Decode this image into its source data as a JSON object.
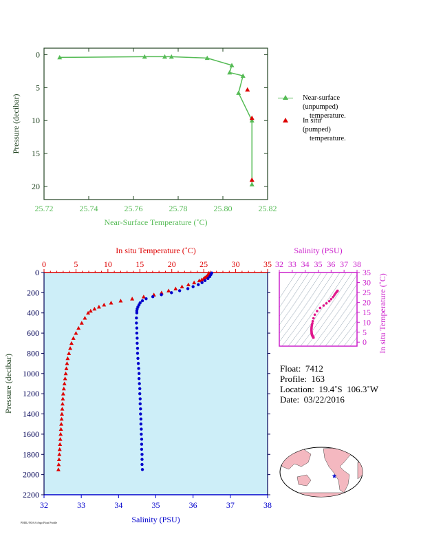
{
  "chart_data": [
    {
      "type": "line",
      "xlabel": "Near-Surface Temperature (˚C)",
      "ylabel": "Pressure (decibar)",
      "xlim": [
        25.72,
        25.82
      ],
      "ylim": [
        22,
        -1
      ],
      "xticks": [
        "25.72",
        "25.74",
        "25.76",
        "25.78",
        "25.80",
        "25.82"
      ],
      "yticks": [
        "0",
        "5",
        "10",
        "15",
        "20"
      ],
      "grid": false,
      "legend": "right",
      "series": [
        {
          "name": "Near-surface (unpumped) temperature.",
          "color": "#55bb55",
          "x": [
            25.727,
            25.765,
            25.774,
            25.777,
            25.793,
            25.804,
            25.803,
            25.809,
            25.807,
            25.813,
            25.813
          ],
          "y": [
            0.4,
            0.3,
            0.3,
            0.3,
            0.5,
            1.6,
            2.7,
            3.2,
            5.8,
            10.0,
            19.7
          ]
        },
        {
          "name": "In situ (pumped) temperature.",
          "color": "#dd0000",
          "x": [
            25.811,
            25.813,
            25.813
          ],
          "y": [
            5.3,
            9.6,
            19.0
          ]
        }
      ],
      "legend_lines": [
        [
          "Near-surface (unpumped)",
          "temperature."
        ],
        [
          "In situ (pumped)",
          "temperature."
        ]
      ]
    },
    {
      "type": "scatter",
      "x_top_label": "In situ Temperature (˚C)",
      "x_bottom_label": "Salinity (PSU)",
      "ylabel": "Pressure (decibar)",
      "temp_lim": [
        0,
        35
      ],
      "sal_lim": [
        32,
        38
      ],
      "ylim": [
        2200,
        0
      ],
      "temp_ticks": [
        "0",
        "5",
        "10",
        "15",
        "20",
        "25",
        "30",
        "35"
      ],
      "sal_ticks": [
        "32",
        "33",
        "34",
        "35",
        "36",
        "37",
        "38"
      ],
      "yticks": [
        "0",
        "200",
        "400",
        "600",
        "800",
        "1000",
        "1200",
        "1400",
        "1600",
        "1800",
        "2000",
        "2200"
      ],
      "background": "#cdeef8",
      "temperature": {
        "color": "#dd0000",
        "p": [
          5,
          10,
          20,
          30,
          40,
          50,
          60,
          70,
          80,
          100,
          120,
          140,
          160,
          180,
          200,
          220,
          240,
          260,
          280,
          300,
          320,
          340,
          360,
          380,
          400,
          450,
          500,
          550,
          600,
          650,
          700,
          750,
          800,
          850,
          900,
          950,
          1000,
          1050,
          1100,
          1150,
          1200,
          1250,
          1300,
          1350,
          1400,
          1450,
          1500,
          1550,
          1600,
          1650,
          1700,
          1750,
          1800,
          1850,
          1900,
          1950
        ],
        "v": [
          25.8,
          25.8,
          25.7,
          25.6,
          25.4,
          25.2,
          25.0,
          24.7,
          24.3,
          23.5,
          22.6,
          21.6,
          20.6,
          19.5,
          18.4,
          17.2,
          15.6,
          13.8,
          12.0,
          10.5,
          9.4,
          8.6,
          7.9,
          7.3,
          6.9,
          6.4,
          5.9,
          5.4,
          5.0,
          4.6,
          4.3,
          4.1,
          3.9,
          3.7,
          3.6,
          3.5,
          3.4,
          3.3,
          3.2,
          3.1,
          3.0,
          2.95,
          2.9,
          2.85,
          2.8,
          2.75,
          2.7,
          2.65,
          2.6,
          2.55,
          2.5,
          2.45,
          2.4,
          2.35,
          2.3,
          2.25
        ]
      },
      "salinity": {
        "color": "#0000cc",
        "p": [
          5,
          20,
          40,
          60,
          80,
          100,
          120,
          140,
          160,
          180,
          200,
          220,
          240,
          260,
          280,
          300,
          320,
          340,
          360,
          380,
          400,
          450,
          500,
          550,
          600,
          650,
          700,
          750,
          800,
          850,
          900,
          950,
          1000,
          1050,
          1100,
          1150,
          1200,
          1250,
          1300,
          1350,
          1400,
          1450,
          1500,
          1550,
          1600,
          1650,
          1700,
          1750,
          1800,
          1850,
          1900,
          1950
        ],
        "v": [
          36.5,
          36.48,
          36.45,
          36.4,
          36.32,
          36.24,
          36.14,
          36.0,
          35.86,
          35.64,
          35.42,
          35.15,
          34.92,
          34.74,
          34.64,
          34.58,
          34.55,
          34.52,
          34.5,
          34.49,
          34.49,
          34.48,
          34.48,
          34.49,
          34.49,
          34.5,
          34.5,
          34.51,
          34.51,
          34.52,
          34.53,
          34.54,
          34.55,
          34.55,
          34.56,
          34.57,
          34.57,
          34.58,
          34.58,
          34.59,
          34.59,
          34.6,
          34.6,
          34.61,
          34.61,
          34.62,
          34.62,
          34.62,
          34.63,
          34.63,
          34.63,
          34.64
        ]
      }
    },
    {
      "type": "scatter",
      "xlabel": "Salinity (PSU)",
      "ylabel": "In situ Temperature (˚C)",
      "xlim": [
        32,
        38
      ],
      "ylim": [
        -2,
        35
      ],
      "xticks": [
        "32",
        "33",
        "34",
        "35",
        "36",
        "37",
        "38"
      ],
      "yticks": [
        "0",
        "5",
        "10",
        "15",
        "20",
        "25",
        "30",
        "35"
      ],
      "color": "#e0188c"
    }
  ],
  "float_info": {
    "float": "Float:  7412",
    "profile": "Profile:  163",
    "location": "Location:  19.4˚S  106.3˚W",
    "date": "Date:  03/22/2016"
  },
  "footer": "PMEL/NOAA Argo Float Profile",
  "colors": {
    "green": "#55bb55",
    "red": "#dd0000",
    "blue": "#0000cc",
    "magenta": "#cc22cc",
    "dark_axis": "#000055",
    "panel_bg": "#cdeef8",
    "land": "#f4b8c0",
    "ocean": "#ffffff"
  }
}
